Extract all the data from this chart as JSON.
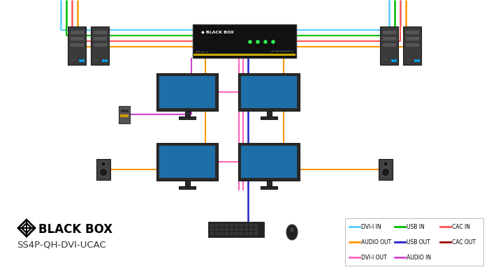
{
  "title": "SS4P-QH-DVI-UCAC",
  "bg_color": "#ffffff",
  "legend_items": [
    {
      "label": "DVI-I IN",
      "color": "#55ccff"
    },
    {
      "label": "USB IN",
      "color": "#00bb00"
    },
    {
      "label": "CAC IN",
      "color": "#ff5555"
    },
    {
      "label": "AUDIO OUT",
      "color": "#ff9900"
    },
    {
      "label": "USB OUT",
      "color": "#2222cc"
    },
    {
      "label": "CAC OUT",
      "color": "#990000"
    },
    {
      "label": "DVI-I OUT",
      "color": "#ff66bb"
    },
    {
      "label": "AUDIO IN",
      "color": "#cc44cc"
    }
  ],
  "colors": {
    "dvi_in": "#55ccff",
    "usb_in": "#00bb00",
    "cac_in": "#ff5555",
    "audio_out": "#ff9900",
    "usb_out": "#2222cc",
    "cac_out": "#990000",
    "dvi_out": "#ff66bb",
    "audio_in": "#cc44cc"
  },
  "device_color": "#3a3a3a",
  "monitor_frame": "#2a2a2a",
  "monitor_screen": "#1e6fa8",
  "kvm_color": "#111111",
  "speaker_color": "#404040"
}
